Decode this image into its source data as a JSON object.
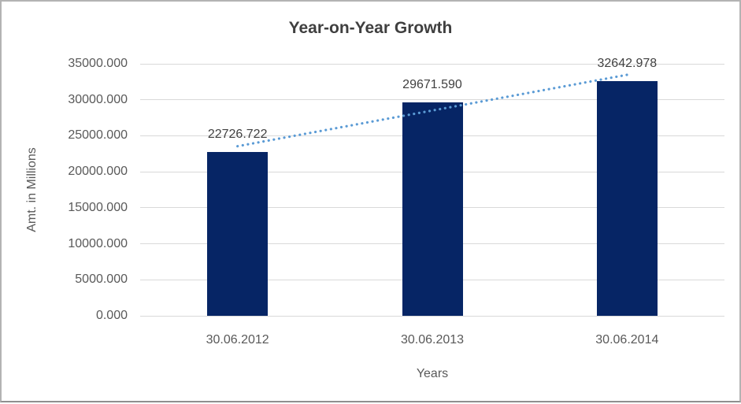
{
  "chart_data": {
    "type": "bar",
    "title": "Year-on-Year Growth",
    "categories": [
      "30.06.2012",
      "30.06.2013",
      "30.06.2014"
    ],
    "values": [
      22726.722,
      29671.59,
      32642.978
    ],
    "value_labels": [
      "22726.722",
      "29671.590",
      "32642.978"
    ],
    "xlabel": "Years",
    "ylabel": "Amt. in Millions",
    "ylim": [
      0,
      35000
    ],
    "ytick_step": 5000,
    "ytick_labels": [
      "0.000",
      "5000.000",
      "10000.000",
      "15000.000",
      "20000.000",
      "25000.000",
      "30000.000",
      "35000.000"
    ],
    "grid": true,
    "legend": "none",
    "trendline": {
      "kind": "linear",
      "style": "dotted",
      "color": "#5b9bd5"
    },
    "colors": {
      "bar": "#062565",
      "grid": "#d9d9d9",
      "axis_text": "#595959",
      "value_label_text": "#404040",
      "title_text": "#3f3f3f"
    }
  }
}
